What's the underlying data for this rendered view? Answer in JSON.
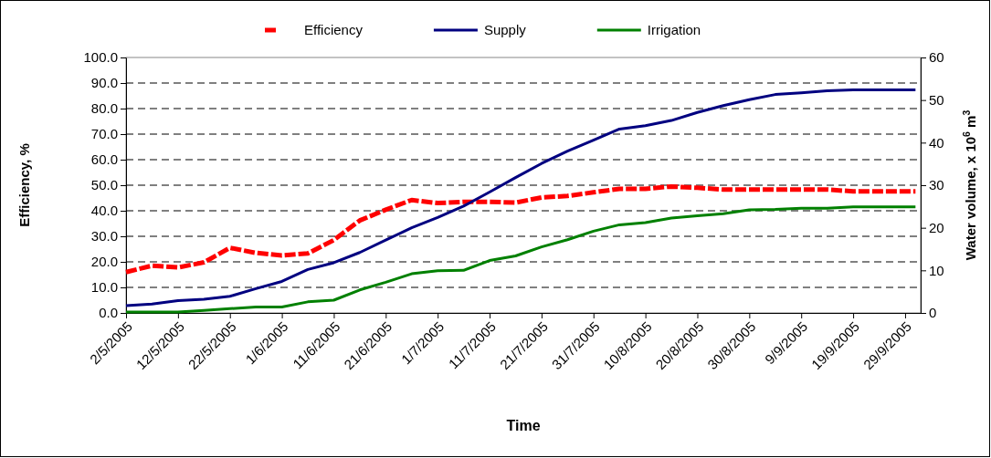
{
  "chart_data": {
    "type": "line",
    "xlabel": "Time",
    "ylabel": "Efficiency, %",
    "y2label": "Water volume, x 10$^{6}$ m$^{3}$",
    "x": [
      "2005-05-02",
      "2005-05-07",
      "2005-05-12",
      "2005-05-17",
      "2005-05-22",
      "2005-05-27",
      "2005-06-01",
      "2005-06-06",
      "2005-06-11",
      "2005-06-16",
      "2005-06-21",
      "2005-06-26",
      "2005-07-01",
      "2005-07-06",
      "2005-07-11",
      "2005-07-16",
      "2005-07-21",
      "2005-07-26",
      "2005-07-31",
      "2005-08-05",
      "2005-08-10",
      "2005-08-15",
      "2005-08-20",
      "2005-08-25",
      "2005-08-30",
      "2005-09-04",
      "2005-09-09",
      "2005-09-14",
      "2005-09-19",
      "2005-09-24",
      "2005-09-29",
      "2005-10-01"
    ],
    "series": [
      {
        "name": "Efficiency",
        "color": "#ff0000",
        "line_style": "dashed",
        "values": [
          16,
          18.5,
          17.8,
          19.8,
          25.5,
          23.5,
          22.5,
          23.3,
          28.5,
          36.2,
          40.4,
          44.2,
          43,
          43.5,
          43.5,
          43.2,
          45.2,
          45.8,
          47.2,
          48.6,
          48.6,
          49.5,
          49,
          48.3,
          48.3,
          48.3,
          48.3,
          48.3,
          47.6,
          47.6,
          47.6,
          47.6
        ]
      },
      {
        "name": "Supply",
        "color": "#000080",
        "axis": "y2",
        "values": [
          1.7,
          2.1,
          2.9,
          3.2,
          3.9,
          5.7,
          7.4,
          10.2,
          11.8,
          14.2,
          17.1,
          20,
          22.4,
          25.1,
          28.4,
          31.8,
          35.1,
          38,
          40.6,
          43.2,
          44,
          45.2,
          47.1,
          48.7,
          50.1,
          51.3,
          51.7,
          52.2,
          52.4,
          52.4,
          52.4,
          52.4
        ]
      },
      {
        "name": "Irrigation",
        "color": "#008000",
        "axis": "y2",
        "values": [
          0.2,
          0.2,
          0.2,
          0.6,
          1,
          1.4,
          1.4,
          2.6,
          3,
          5.4,
          7.2,
          9.2,
          9.9,
          10,
          12.3,
          13.4,
          15.5,
          17.2,
          19.2,
          20.7,
          21.2,
          22.3,
          22.8,
          23.3,
          24.2,
          24.3,
          24.6,
          24.6,
          24.9,
          24.9,
          24.9,
          24.9
        ]
      }
    ],
    "xlim": [
      "2005-05-02",
      "2005-10-02"
    ],
    "xticks": [
      {
        "value": "2005-05-02",
        "label": "2/5/2005"
      },
      {
        "value": "2005-05-12",
        "label": "12/5/2005"
      },
      {
        "value": "2005-05-22",
        "label": "22/5/2005"
      },
      {
        "value": "2005-06-01",
        "label": "1/6/2005"
      },
      {
        "value": "2005-06-11",
        "label": "11/6/2005"
      },
      {
        "value": "2005-06-21",
        "label": "21/6/2005"
      },
      {
        "value": "2005-07-01",
        "label": "1/7/2005"
      },
      {
        "value": "2005-07-11",
        "label": "11/7/2005"
      },
      {
        "value": "2005-07-21",
        "label": "21/7/2005"
      },
      {
        "value": "2005-07-31",
        "label": "31/7/2005"
      },
      {
        "value": "2005-08-10",
        "label": "10/8/2005"
      },
      {
        "value": "2005-08-20",
        "label": "20/8/2005"
      },
      {
        "value": "2005-08-30",
        "label": "30/8/2005"
      },
      {
        "value": "2005-09-09",
        "label": "9/9/2005"
      },
      {
        "value": "2005-09-19",
        "label": "19/9/2005"
      },
      {
        "value": "2005-09-29",
        "label": "29/9/2005"
      }
    ],
    "ylim": [
      0,
      100
    ],
    "yticks": [
      {
        "value": 0,
        "label": "0.0"
      },
      {
        "value": 10,
        "label": "10.0"
      },
      {
        "value": 20,
        "label": "20.0"
      },
      {
        "value": 30,
        "label": "30.0"
      },
      {
        "value": 40,
        "label": "40.0"
      },
      {
        "value": 50,
        "label": "50.0"
      },
      {
        "value": 60,
        "label": "60.0"
      },
      {
        "value": 70,
        "label": "70.0"
      },
      {
        "value": 80,
        "label": "80.0"
      },
      {
        "value": 90,
        "label": "90.0"
      },
      {
        "value": 100,
        "label": "100.0"
      }
    ],
    "y2lim": [
      0,
      60
    ],
    "y2ticks": [
      0,
      10,
      20,
      30,
      40,
      50,
      60
    ],
    "grid": "y",
    "legend": "top"
  }
}
